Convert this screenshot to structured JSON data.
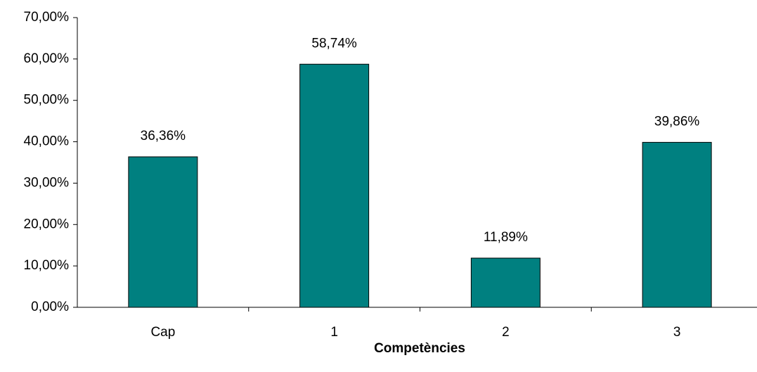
{
  "chart_data": {
    "type": "bar",
    "categories": [
      "Cap",
      "1",
      "2",
      "3"
    ],
    "values": [
      36.36,
      58.74,
      11.89,
      39.86
    ],
    "data_labels": [
      "36,36%",
      "58,74%",
      "11,89%",
      "39,86%"
    ],
    "title": "",
    "xlabel": "Competències",
    "ylabel": "",
    "ylim": [
      0,
      70
    ],
    "yticks": [
      0,
      10,
      20,
      30,
      40,
      50,
      60,
      70
    ],
    "ytick_labels": [
      "0,00%",
      "10,00%",
      "20,00%",
      "30,00%",
      "40,00%",
      "50,00%",
      "60,00%",
      "70,00%"
    ],
    "grid": false,
    "legend": "none",
    "bar_color": "#008080",
    "bar_edge_color": "#000000"
  }
}
